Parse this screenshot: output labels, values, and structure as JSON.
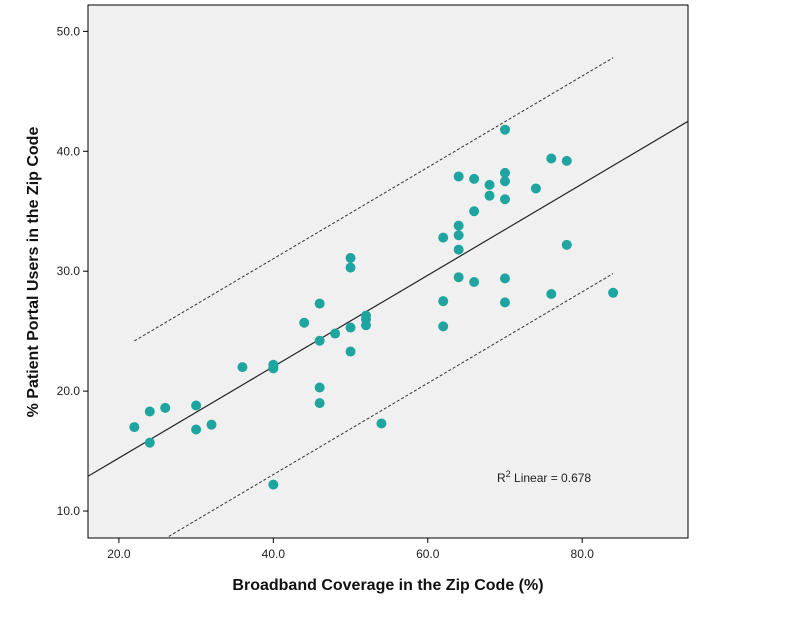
{
  "chart_data": {
    "type": "scatter",
    "title": "",
    "xlabel": "Broadband Coverage in the Zip Code (%)",
    "ylabel": "% Patient Portal Users in the Zip Code",
    "xlim": [
      16,
      93.7
    ],
    "ylim": [
      7.75,
      52.2
    ],
    "xticks": [
      {
        "v": 20,
        "label": "20.0"
      },
      {
        "v": 40,
        "label": "40.0"
      },
      {
        "v": 60,
        "label": "60.0"
      },
      {
        "v": 80,
        "label": "80.0"
      }
    ],
    "yticks": [
      {
        "v": 10,
        "label": "10.0"
      },
      {
        "v": 20,
        "label": "20.0"
      },
      {
        "v": 30,
        "label": "30.0"
      },
      {
        "v": 40,
        "label": "40.0"
      },
      {
        "v": 50,
        "label": "50.0"
      }
    ],
    "grid": false,
    "point_color": "#1fa5a0",
    "background_color": "#f0f0f0",
    "points": [
      [
        22,
        17.0
      ],
      [
        24,
        18.3
      ],
      [
        24,
        15.7
      ],
      [
        26,
        18.6
      ],
      [
        30,
        18.8
      ],
      [
        30,
        16.8
      ],
      [
        32,
        17.2
      ],
      [
        36,
        22.0
      ],
      [
        40,
        22.2
      ],
      [
        40,
        21.9
      ],
      [
        40,
        12.2
      ],
      [
        44,
        25.7
      ],
      [
        46,
        27.3
      ],
      [
        46,
        24.2
      ],
      [
        46,
        20.3
      ],
      [
        46,
        19.0
      ],
      [
        48,
        24.8
      ],
      [
        50,
        31.1
      ],
      [
        50,
        30.3
      ],
      [
        50,
        25.3
      ],
      [
        50,
        23.3
      ],
      [
        52,
        26.3
      ],
      [
        52,
        26.0
      ],
      [
        52,
        25.5
      ],
      [
        54,
        17.3
      ],
      [
        62,
        32.8
      ],
      [
        62,
        27.5
      ],
      [
        62,
        25.4
      ],
      [
        64,
        37.9
      ],
      [
        64,
        33.8
      ],
      [
        64,
        33.0
      ],
      [
        64,
        31.8
      ],
      [
        64,
        29.5
      ],
      [
        66,
        37.7
      ],
      [
        66,
        35.0
      ],
      [
        66,
        29.1
      ],
      [
        68,
        37.2
      ],
      [
        68,
        36.3
      ],
      [
        70,
        41.8
      ],
      [
        70,
        38.2
      ],
      [
        70,
        37.5
      ],
      [
        70,
        36.0
      ],
      [
        70,
        29.4
      ],
      [
        70,
        27.4
      ],
      [
        74,
        36.9
      ],
      [
        76,
        39.4
      ],
      [
        76,
        28.1
      ],
      [
        78,
        39.2
      ],
      [
        78,
        32.2
      ],
      [
        84,
        28.2
      ]
    ],
    "fit_line": {
      "type": "linear",
      "slope": 0.381,
      "intercept": 6.8,
      "x_range": [
        16,
        93.7
      ]
    },
    "interval_lines": {
      "style": "dashed",
      "offset": 9.0,
      "x_range": [
        22,
        84
      ]
    },
    "annotation": {
      "prefix": "R",
      "sup": "2",
      "text": " Linear = 0.678"
    }
  }
}
